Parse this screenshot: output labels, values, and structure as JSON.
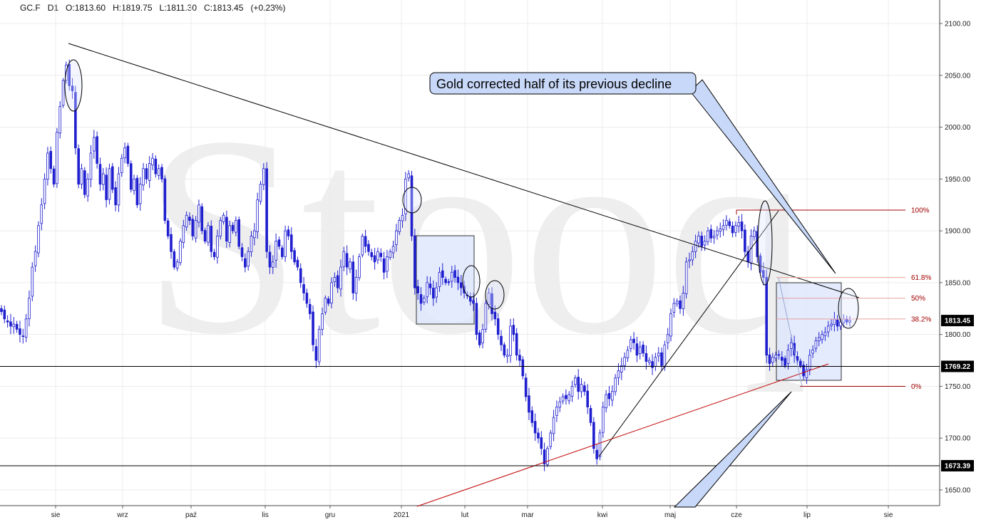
{
  "header": {
    "symbol": "GC.F",
    "interval": "D1",
    "open": "O:1813.60",
    "high": "H:1819.75",
    "low": "L:1811.30",
    "close": "C:1813.45",
    "change": "(+0.23%)"
  },
  "watermark": "Stooq",
  "colors": {
    "candle": "#1f1fd0",
    "trendline": "#000000",
    "support_red": "#c00000",
    "fib": "#a00000",
    "box_fill": "#dde6fb",
    "callout_fill": "#c8d8f8"
  },
  "chart_data": {
    "type": "candlestick",
    "title": "",
    "ylim": [
      1630,
      2115
    ],
    "y_ticks": [
      "1650.00",
      "1700.00",
      "1750.00",
      "1800.00",
      "1850.00",
      "1900.00",
      "1950.00",
      "2000.00",
      "2050.00",
      "2100.00"
    ],
    "x_ticks": [
      "sie",
      "wrz",
      "paź",
      "lis",
      "gru",
      "2021",
      "lut",
      "mar",
      "kwi",
      "maj",
      "cze",
      "lip",
      "sie"
    ],
    "grid": true,
    "close_path": [
      1822,
      1815,
      1812,
      1808,
      1810,
      1805,
      1800,
      1798,
      1815,
      1835,
      1865,
      1880,
      1905,
      1925,
      1950,
      1975,
      1960,
      1945,
      1995,
      2020,
      2045,
      2060,
      2040,
      2035,
      1980,
      1945,
      1960,
      1935,
      1950,
      1975,
      1990,
      1965,
      1945,
      1955,
      1930,
      1960,
      1940,
      1925,
      1955,
      1970,
      1980,
      1965,
      1940,
      1950,
      1925,
      1945,
      1960,
      1950,
      1965,
      1970,
      1955,
      1960,
      1950,
      1910,
      1895,
      1880,
      1865,
      1870,
      1890,
      1905,
      1915,
      1910,
      1895,
      1910,
      1925,
      1900,
      1890,
      1905,
      1880,
      1875,
      1895,
      1910,
      1915,
      1890,
      1905,
      1900,
      1910,
      1885,
      1875,
      1865,
      1880,
      1895,
      1900,
      1930,
      1945,
      1960,
      1880,
      1865,
      1870,
      1890,
      1885,
      1875,
      1900,
      1895,
      1880,
      1870,
      1865,
      1850,
      1840,
      1830,
      1820,
      1790,
      1775,
      1805,
      1820,
      1835,
      1830,
      1850,
      1855,
      1845,
      1865,
      1880,
      1865,
      1870,
      1840,
      1855,
      1875,
      1895,
      1885,
      1880,
      1875,
      1870,
      1880,
      1875,
      1860,
      1875,
      1880,
      1885,
      1900,
      1910,
      1915,
      1950,
      1955,
      1895,
      1845,
      1840,
      1830,
      1835,
      1850,
      1845,
      1835,
      1845,
      1860,
      1855,
      1850,
      1850,
      1860,
      1855,
      1850,
      1845,
      1840,
      1838,
      1832,
      1830,
      1800,
      1790,
      1805,
      1830,
      1840,
      1820,
      1815,
      1800,
      1790,
      1780,
      1780,
      1808,
      1800,
      1780,
      1775,
      1760,
      1740,
      1725,
      1715,
      1705,
      1700,
      1690,
      1675,
      1690,
      1705,
      1720,
      1730,
      1735,
      1740,
      1738,
      1742,
      1750,
      1758,
      1745,
      1752,
      1745,
      1730,
      1715,
      1690,
      1680,
      1705,
      1730,
      1742,
      1738,
      1745,
      1758,
      1765,
      1770,
      1778,
      1785,
      1795,
      1792,
      1780,
      1788,
      1782,
      1774,
      1775,
      1768,
      1778,
      1782,
      1770,
      1790,
      1800,
      1820,
      1830,
      1832,
      1825,
      1840,
      1870,
      1872,
      1880,
      1890,
      1895,
      1885,
      1890,
      1900,
      1893,
      1895,
      1900,
      1902,
      1905,
      1910,
      1905,
      1898,
      1905,
      1908,
      1900,
      1880,
      1870,
      1895,
      1900,
      1875,
      1860,
      1855,
      1780,
      1772,
      1778,
      1780,
      1780,
      1775,
      1770,
      1785,
      1792,
      1780,
      1775,
      1770,
      1760,
      1766,
      1780,
      1785,
      1794,
      1797,
      1800,
      1802,
      1808,
      1810,
      1815,
      1808,
      1812,
      1815,
      1812,
      1813.45
    ],
    "last_close_label": "1813.45",
    "horizontal_levels": [
      "1769.22",
      "1673.39"
    ],
    "fibonacci": {
      "high": 1920,
      "low": 1750,
      "levels": [
        {
          "label": "100%",
          "value": 1920
        },
        {
          "label": "61.8%",
          "value": 1855
        },
        {
          "label": "50%",
          "value": 1835
        },
        {
          "label": "38.2%",
          "value": 1815
        },
        {
          "label": "0%",
          "value": 1750
        }
      ]
    },
    "annotations": [
      "Gold corrected half of its previous decline"
    ]
  }
}
